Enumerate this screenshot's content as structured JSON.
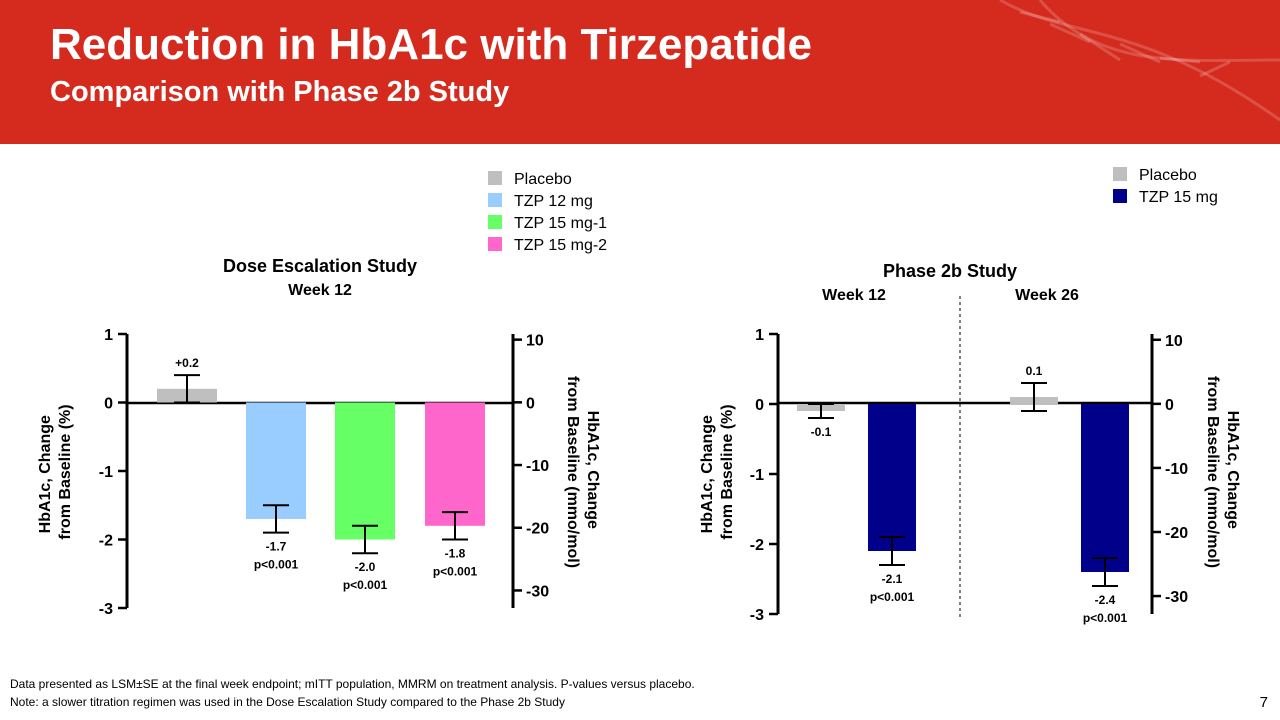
{
  "slide": {
    "title": "Reduction in HbA1c with Tirzepatide",
    "subtitle": "Comparison with Phase 2b Study",
    "footnote1": "Data presented as LSM±SE at the final week endpoint; mITT population, MMRM on treatment analysis. P-values versus placebo.",
    "footnote2": "Note: a slower titration regimen was used in the Dose Escalation Study compared to the Phase 2b Study",
    "page_number": "7",
    "accent_color": "#d52b1e"
  },
  "chart_data": [
    {
      "type": "bar",
      "title": "Dose Escalation Study",
      "subtitle": "Week 12",
      "ylabel": "HbA1c, Change\nfrom Baseline (%)",
      "y2label": "HbA1c, Change\nfrom Baseline (mmo/mol)",
      "ylim": [
        -3,
        1
      ],
      "yticks": [
        "1",
        "0",
        "-1",
        "-2",
        "-3"
      ],
      "y2lim": [
        -32.8,
        10.9
      ],
      "y2ticks": [
        "10",
        "0",
        "-10",
        "-20",
        "-30"
      ],
      "legend": [
        {
          "name": "Placebo",
          "color": "#bfbfbf"
        },
        {
          "name": "TZP 12 mg",
          "color": "#99ccff"
        },
        {
          "name": "TZP 15 mg-1",
          "color": "#66ff66"
        },
        {
          "name": "TZP 15 mg-2",
          "color": "#ff66cc"
        }
      ],
      "bars": [
        {
          "series": "Placebo",
          "value": 0.2,
          "se": 0.2,
          "label": "+0.2",
          "p": "",
          "color": "#bfbfbf"
        },
        {
          "series": "TZP 12 mg",
          "value": -1.7,
          "se": 0.2,
          "label": "-1.7",
          "p": "p<0.001",
          "color": "#99ccff"
        },
        {
          "series": "TZP 15 mg-1",
          "value": -2.0,
          "se": 0.2,
          "label": "-2.0",
          "p": "p<0.001",
          "color": "#66ff66"
        },
        {
          "series": "TZP 15 mg-2",
          "value": -1.8,
          "se": 0.2,
          "label": "-1.8",
          "p": "p<0.001",
          "color": "#ff66cc"
        }
      ]
    },
    {
      "type": "bar",
      "title": "Phase 2b Study",
      "groups": [
        "Week 12",
        "Week 26"
      ],
      "ylabel": "HbA1c, Change\nfrom Baseline (%)",
      "y2label": "HbA1c, Change\nfrom Baseline (mmo/mol)",
      "ylim": [
        -3,
        1
      ],
      "yticks": [
        "1",
        "0",
        "-1",
        "-2",
        "-3"
      ],
      "y2lim": [
        -32.8,
        10.9
      ],
      "y2ticks": [
        "10",
        "0",
        "-10",
        "-20",
        "-30"
      ],
      "legend": [
        {
          "name": "Placebo",
          "color": "#bfbfbf"
        },
        {
          "name": "TZP 15 mg",
          "color": "#00008b"
        }
      ],
      "bars": [
        {
          "group": "Week 12",
          "series": "Placebo",
          "value": -0.1,
          "se": 0.1,
          "label": "-0.1",
          "p": "",
          "color": "#bfbfbf"
        },
        {
          "group": "Week 12",
          "series": "TZP 15 mg",
          "value": -2.1,
          "se": 0.2,
          "label": "-2.1",
          "p": "p<0.001",
          "color": "#00008b"
        },
        {
          "group": "Week 26",
          "series": "Placebo",
          "value": 0.1,
          "se": 0.2,
          "label": "0.1",
          "p": "",
          "color": "#bfbfbf"
        },
        {
          "group": "Week 26",
          "series": "TZP 15 mg",
          "value": -2.4,
          "se": 0.2,
          "label": "-2.4",
          "p": "p<0.001",
          "color": "#00008b"
        }
      ]
    }
  ]
}
